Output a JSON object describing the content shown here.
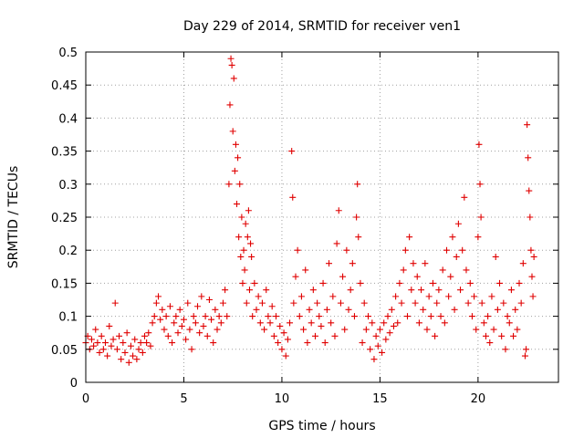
{
  "chart_data": {
    "type": "scatter",
    "title": "Day 229 of 2014, SRMTID for receiver ven1",
    "xlabel": "GPS time / hours",
    "ylabel": "SRMTID / TECUs",
    "xlim": [
      0,
      24.1
    ],
    "ylim": [
      0,
      0.5
    ],
    "x_ticks": [
      "0",
      "5",
      "10",
      "15",
      "20"
    ],
    "x_tick_values": [
      0,
      5,
      10,
      15,
      20
    ],
    "y_ticks": [
      "0",
      "0.05",
      "0.1",
      "0.15",
      "0.2",
      "0.25",
      "0.3",
      "0.35",
      "0.4",
      "0.45",
      "0.5"
    ],
    "y_tick_values": [
      0,
      0.05,
      0.1,
      0.15,
      0.2,
      0.25,
      0.3,
      0.35,
      0.4,
      0.45,
      0.5
    ],
    "grid": true,
    "marker": "plus",
    "color": "#e00000",
    "series": [
      {
        "name": "ven1",
        "points": [
          [
            0.0,
            0.06
          ],
          [
            0.1,
            0.07
          ],
          [
            0.2,
            0.05
          ],
          [
            0.3,
            0.065
          ],
          [
            0.4,
            0.055
          ],
          [
            0.5,
            0.08
          ],
          [
            0.6,
            0.06
          ],
          [
            0.7,
            0.045
          ],
          [
            0.8,
            0.07
          ],
          [
            0.9,
            0.05
          ],
          [
            1.0,
            0.06
          ],
          [
            1.1,
            0.04
          ],
          [
            1.2,
            0.085
          ],
          [
            1.3,
            0.055
          ],
          [
            1.4,
            0.065
          ],
          [
            1.5,
            0.12
          ],
          [
            1.6,
            0.05
          ],
          [
            1.7,
            0.07
          ],
          [
            1.8,
            0.035
          ],
          [
            1.9,
            0.06
          ],
          [
            2.0,
            0.045
          ],
          [
            2.1,
            0.075
          ],
          [
            2.2,
            0.03
          ],
          [
            2.3,
            0.055
          ],
          [
            2.4,
            0.04
          ],
          [
            2.5,
            0.065
          ],
          [
            2.6,
            0.035
          ],
          [
            2.7,
            0.05
          ],
          [
            2.8,
            0.06
          ],
          [
            2.9,
            0.045
          ],
          [
            3.0,
            0.07
          ],
          [
            3.1,
            0.06
          ],
          [
            3.2,
            0.075
          ],
          [
            3.3,
            0.055
          ],
          [
            3.4,
            0.09
          ],
          [
            3.5,
            0.1
          ],
          [
            3.6,
            0.12
          ],
          [
            3.7,
            0.13
          ],
          [
            3.8,
            0.095
          ],
          [
            3.9,
            0.11
          ],
          [
            4.0,
            0.08
          ],
          [
            4.1,
            0.1
          ],
          [
            4.2,
            0.07
          ],
          [
            4.3,
            0.115
          ],
          [
            4.4,
            0.06
          ],
          [
            4.5,
            0.09
          ],
          [
            4.6,
            0.1
          ],
          [
            4.7,
            0.075
          ],
          [
            4.8,
            0.11
          ],
          [
            4.9,
            0.085
          ],
          [
            5.0,
            0.095
          ],
          [
            5.1,
            0.065
          ],
          [
            5.2,
            0.12
          ],
          [
            5.3,
            0.08
          ],
          [
            5.4,
            0.05
          ],
          [
            5.5,
            0.1
          ],
          [
            5.6,
            0.09
          ],
          [
            5.7,
            0.115
          ],
          [
            5.8,
            0.075
          ],
          [
            5.9,
            0.13
          ],
          [
            6.0,
            0.085
          ],
          [
            6.1,
            0.1
          ],
          [
            6.2,
            0.07
          ],
          [
            6.3,
            0.125
          ],
          [
            6.4,
            0.095
          ],
          [
            6.5,
            0.06
          ],
          [
            6.6,
            0.11
          ],
          [
            6.7,
            0.08
          ],
          [
            6.8,
            0.1
          ],
          [
            6.9,
            0.09
          ],
          [
            7.0,
            0.12
          ],
          [
            7.1,
            0.14
          ],
          [
            7.2,
            0.1
          ],
          [
            7.3,
            0.3
          ],
          [
            7.35,
            0.42
          ],
          [
            7.4,
            0.49
          ],
          [
            7.45,
            0.48
          ],
          [
            7.5,
            0.38
          ],
          [
            7.55,
            0.46
          ],
          [
            7.6,
            0.32
          ],
          [
            7.65,
            0.36
          ],
          [
            7.7,
            0.27
          ],
          [
            7.75,
            0.34
          ],
          [
            7.8,
            0.22
          ],
          [
            7.85,
            0.3
          ],
          [
            7.9,
            0.19
          ],
          [
            7.95,
            0.25
          ],
          [
            8.0,
            0.15
          ],
          [
            8.05,
            0.2
          ],
          [
            8.1,
            0.17
          ],
          [
            8.15,
            0.24
          ],
          [
            8.2,
            0.12
          ],
          [
            8.25,
            0.22
          ],
          [
            8.3,
            0.26
          ],
          [
            8.35,
            0.14
          ],
          [
            8.4,
            0.21
          ],
          [
            8.45,
            0.19
          ],
          [
            8.5,
            0.1
          ],
          [
            8.6,
            0.15
          ],
          [
            8.7,
            0.11
          ],
          [
            8.8,
            0.13
          ],
          [
            8.9,
            0.09
          ],
          [
            9.0,
            0.12
          ],
          [
            9.1,
            0.08
          ],
          [
            9.2,
            0.14
          ],
          [
            9.3,
            0.1
          ],
          [
            9.4,
            0.09
          ],
          [
            9.5,
            0.115
          ],
          [
            9.6,
            0.07
          ],
          [
            9.7,
            0.1
          ],
          [
            9.8,
            0.06
          ],
          [
            9.9,
            0.085
          ],
          [
            10.0,
            0.05
          ],
          [
            10.1,
            0.075
          ],
          [
            10.2,
            0.04
          ],
          [
            10.3,
            0.065
          ],
          [
            10.4,
            0.09
          ],
          [
            10.5,
            0.35
          ],
          [
            10.55,
            0.28
          ],
          [
            10.6,
            0.12
          ],
          [
            10.7,
            0.16
          ],
          [
            10.8,
            0.2
          ],
          [
            10.9,
            0.1
          ],
          [
            11.0,
            0.13
          ],
          [
            11.1,
            0.08
          ],
          [
            11.2,
            0.17
          ],
          [
            11.3,
            0.06
          ],
          [
            11.4,
            0.11
          ],
          [
            11.5,
            0.09
          ],
          [
            11.6,
            0.14
          ],
          [
            11.7,
            0.07
          ],
          [
            11.8,
            0.12
          ],
          [
            11.9,
            0.1
          ],
          [
            12.0,
            0.085
          ],
          [
            12.1,
            0.15
          ],
          [
            12.2,
            0.06
          ],
          [
            12.3,
            0.11
          ],
          [
            12.4,
            0.18
          ],
          [
            12.5,
            0.09
          ],
          [
            12.6,
            0.13
          ],
          [
            12.7,
            0.07
          ],
          [
            12.8,
            0.21
          ],
          [
            12.9,
            0.26
          ],
          [
            13.0,
            0.12
          ],
          [
            13.1,
            0.16
          ],
          [
            13.2,
            0.08
          ],
          [
            13.3,
            0.2
          ],
          [
            13.4,
            0.11
          ],
          [
            13.5,
            0.14
          ],
          [
            13.6,
            0.18
          ],
          [
            13.7,
            0.1
          ],
          [
            13.8,
            0.25
          ],
          [
            13.85,
            0.3
          ],
          [
            13.9,
            0.22
          ],
          [
            14.0,
            0.15
          ],
          [
            14.1,
            0.06
          ],
          [
            14.2,
            0.12
          ],
          [
            14.3,
            0.08
          ],
          [
            14.4,
            0.1
          ],
          [
            14.5,
            0.05
          ],
          [
            14.6,
            0.09
          ],
          [
            14.7,
            0.035
          ],
          [
            14.8,
            0.07
          ],
          [
            14.9,
            0.055
          ],
          [
            15.0,
            0.08
          ],
          [
            15.1,
            0.045
          ],
          [
            15.2,
            0.09
          ],
          [
            15.3,
            0.065
          ],
          [
            15.4,
            0.1
          ],
          [
            15.5,
            0.075
          ],
          [
            15.6,
            0.11
          ],
          [
            15.7,
            0.085
          ],
          [
            15.8,
            0.13
          ],
          [
            15.9,
            0.09
          ],
          [
            16.0,
            0.15
          ],
          [
            16.1,
            0.12
          ],
          [
            16.2,
            0.17
          ],
          [
            16.3,
            0.2
          ],
          [
            16.4,
            0.1
          ],
          [
            16.5,
            0.22
          ],
          [
            16.6,
            0.14
          ],
          [
            16.7,
            0.18
          ],
          [
            16.8,
            0.12
          ],
          [
            16.9,
            0.16
          ],
          [
            17.0,
            0.09
          ],
          [
            17.1,
            0.14
          ],
          [
            17.2,
            0.11
          ],
          [
            17.3,
            0.18
          ],
          [
            17.4,
            0.08
          ],
          [
            17.5,
            0.13
          ],
          [
            17.6,
            0.1
          ],
          [
            17.7,
            0.15
          ],
          [
            17.8,
            0.07
          ],
          [
            17.9,
            0.12
          ],
          [
            18.0,
            0.14
          ],
          [
            18.1,
            0.1
          ],
          [
            18.2,
            0.17
          ],
          [
            18.3,
            0.09
          ],
          [
            18.4,
            0.2
          ],
          [
            18.5,
            0.13
          ],
          [
            18.6,
            0.16
          ],
          [
            18.7,
            0.22
          ],
          [
            18.8,
            0.11
          ],
          [
            18.9,
            0.19
          ],
          [
            19.0,
            0.24
          ],
          [
            19.1,
            0.14
          ],
          [
            19.2,
            0.2
          ],
          [
            19.3,
            0.28
          ],
          [
            19.4,
            0.17
          ],
          [
            19.5,
            0.12
          ],
          [
            19.6,
            0.15
          ],
          [
            19.7,
            0.1
          ],
          [
            19.8,
            0.13
          ],
          [
            19.9,
            0.08
          ],
          [
            20.0,
            0.22
          ],
          [
            20.05,
            0.36
          ],
          [
            20.1,
            0.3
          ],
          [
            20.15,
            0.25
          ],
          [
            20.2,
            0.12
          ],
          [
            20.3,
            0.09
          ],
          [
            20.4,
            0.07
          ],
          [
            20.5,
            0.1
          ],
          [
            20.6,
            0.06
          ],
          [
            20.7,
            0.13
          ],
          [
            20.8,
            0.08
          ],
          [
            20.9,
            0.19
          ],
          [
            21.0,
            0.11
          ],
          [
            21.1,
            0.15
          ],
          [
            21.2,
            0.07
          ],
          [
            21.3,
            0.12
          ],
          [
            21.4,
            0.05
          ],
          [
            21.5,
            0.1
          ],
          [
            21.6,
            0.09
          ],
          [
            21.7,
            0.14
          ],
          [
            21.8,
            0.07
          ],
          [
            21.9,
            0.11
          ],
          [
            22.0,
            0.08
          ],
          [
            22.1,
            0.15
          ],
          [
            22.2,
            0.12
          ],
          [
            22.3,
            0.18
          ],
          [
            22.4,
            0.04
          ],
          [
            22.45,
            0.05
          ],
          [
            22.5,
            0.39
          ],
          [
            22.55,
            0.34
          ],
          [
            22.6,
            0.29
          ],
          [
            22.65,
            0.25
          ],
          [
            22.7,
            0.2
          ],
          [
            22.75,
            0.16
          ],
          [
            22.8,
            0.13
          ],
          [
            22.85,
            0.19
          ]
        ]
      }
    ]
  }
}
